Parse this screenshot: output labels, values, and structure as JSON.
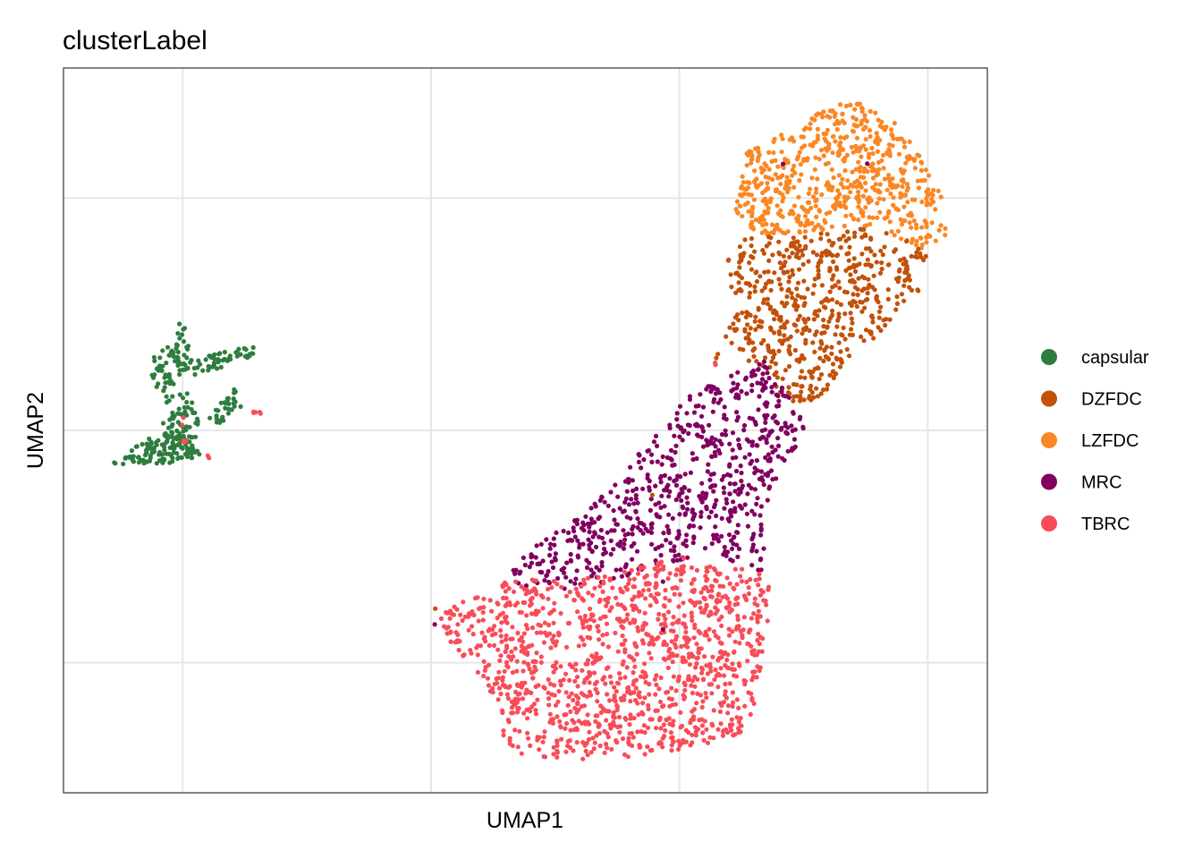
{
  "chart_data": {
    "type": "scatter",
    "title": "clusterLabel",
    "xlabel": "UMAP1",
    "ylabel": "UMAP2",
    "xlim": [
      -7.4,
      11.2
    ],
    "ylim": [
      -7.8,
      7.8
    ],
    "x_gridlines": [
      -5,
      0,
      5,
      10
    ],
    "y_gridlines": [
      -5,
      0,
      5
    ],
    "tick_labels_shown": false,
    "grid": true,
    "legend_position": "right",
    "series": [
      {
        "name": "capsular",
        "color": "#2E7D3E"
      },
      {
        "name": "DZFDC",
        "color": "#C2510A"
      },
      {
        "name": "LZFDC",
        "color": "#FB8724"
      },
      {
        "name": "MRC",
        "color": "#800060"
      },
      {
        "name": "TBRC",
        "color": "#F84D59"
      }
    ]
  }
}
